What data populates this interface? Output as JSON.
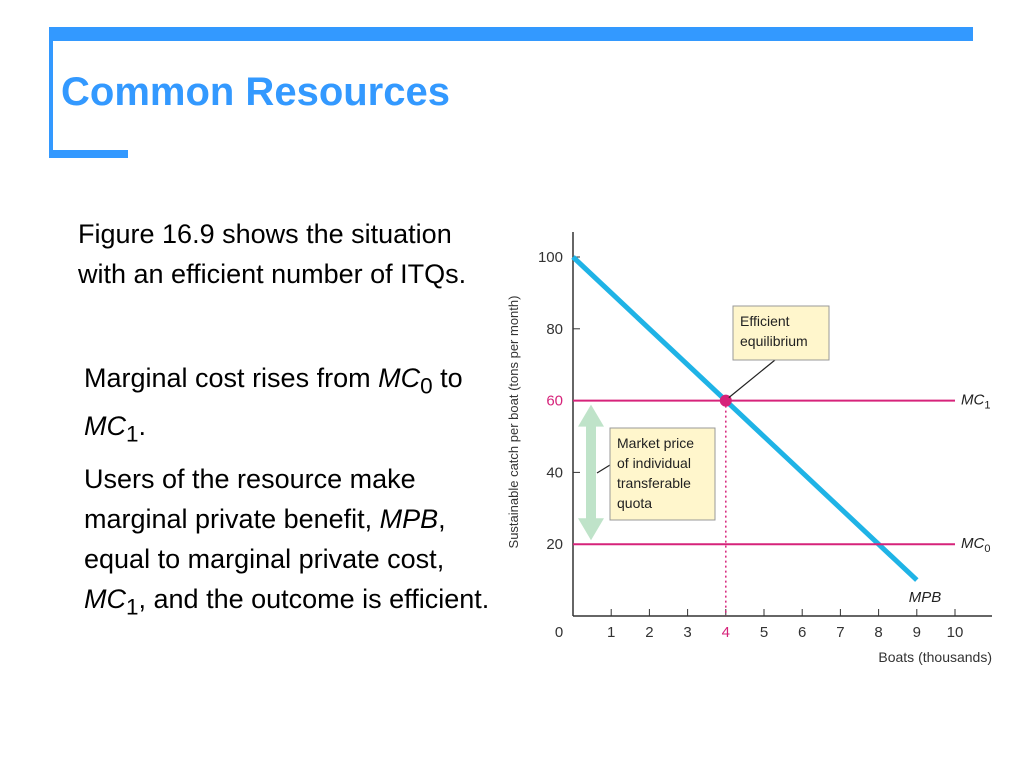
{
  "slide": {
    "title": "Common Resources",
    "intro": "Figure 16.9 shows the situation with an efficient number of ITQs.",
    "bullet1": {
      "pre": "Marginal cost rises from ",
      "mc0": "MC",
      "sub0": "0",
      "mid": " to ",
      "mc1": "MC",
      "sub1": "1",
      "post": "."
    },
    "bullet2": {
      "p1": "Users of the resource make marginal private benefit, ",
      "mpb": "MPB",
      "p2": ", equal to marginal private cost, ",
      "mc": "MC",
      "sub": "1",
      "p3": ", and the outcome is efficient."
    }
  },
  "colors": {
    "accent": "#3399ff",
    "curve": "#1fb3e6",
    "mc_line": "#d6237a",
    "arrow": "#bfe3c9",
    "box": "#fff6cc"
  },
  "chart_data": {
    "type": "line",
    "xlabel": "Boats  (thousands)",
    "ylabel": "Sustainable catch per boat (tons per month)",
    "xlim": [
      0,
      11
    ],
    "ylim": [
      0,
      110
    ],
    "x_ticks": [
      0,
      1,
      2,
      3,
      4,
      5,
      6,
      7,
      8,
      9,
      10
    ],
    "y_ticks": [
      20,
      40,
      60,
      80,
      100
    ],
    "series": [
      {
        "name": "MPB",
        "x": [
          0,
          9
        ],
        "y": [
          100,
          10
        ]
      },
      {
        "name": "MC",
        "sub": "1",
        "x": [
          0,
          10
        ],
        "y": [
          60,
          60
        ]
      },
      {
        "name": "MC",
        "sub": "0",
        "x": [
          0,
          10
        ],
        "y": [
          20,
          20
        ]
      }
    ],
    "equilibrium": {
      "x": 4,
      "y": 60
    },
    "annotations": {
      "efficient": [
        "Efficient",
        "equilibrium"
      ],
      "quota": [
        "Market price",
        "of individual",
        "transferable",
        "quota"
      ]
    }
  }
}
